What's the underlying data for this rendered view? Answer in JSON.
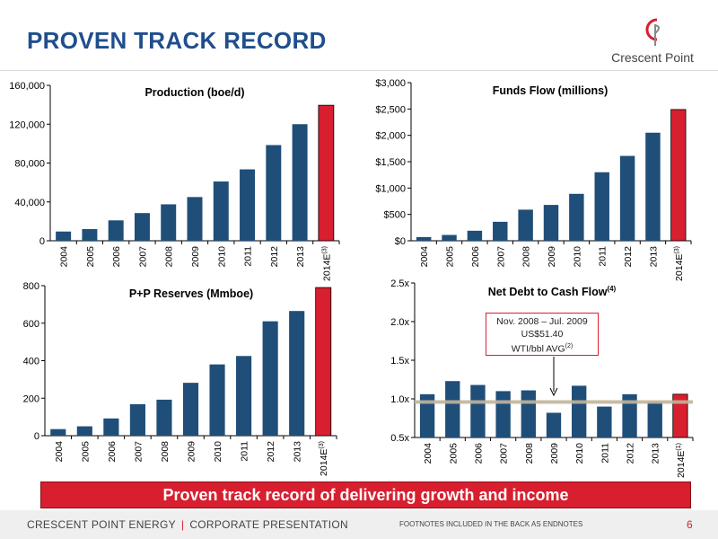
{
  "slide": {
    "title": "PROVEN TRACK RECORD",
    "logo_text": "Crescent Point",
    "banner": "Proven track record of delivering growth and income",
    "footer_left_company": "CRESCENT POINT ENERGY",
    "footer_left_separator": "|",
    "footer_left_doc": "CORPORATE PRESENTATION",
    "footer_note": "FOOTNOTES INCLUDED IN THE BACK AS ENDNOTES",
    "page_number": "6",
    "colors": {
      "navy": "#1f4e79",
      "red": "#d71f2f",
      "title_blue": "#1f4e8c",
      "reference_line": "#c2b59b"
    }
  },
  "annotation": {
    "line1": "Nov. 2008 – Jul. 2009",
    "line2": "US$51.40",
    "line3": "WTI/bbl AVG",
    "footnote": "(2)"
  },
  "chart_data": [
    {
      "type": "bar",
      "title": "Production (boe/d)",
      "categories": [
        "2004",
        "2005",
        "2006",
        "2007",
        "2008",
        "2009",
        "2010",
        "2011",
        "2012",
        "2013",
        "2014E"
      ],
      "category_footnotes": [
        "",
        "",
        "",
        "",
        "",
        "",
        "",
        "",
        "",
        "",
        "(3)"
      ],
      "values": [
        9500,
        12000,
        21000,
        28500,
        37500,
        45000,
        61000,
        73500,
        98500,
        120000,
        139500
      ],
      "ylim": [
        0,
        160000
      ],
      "yticks": [
        0,
        40000,
        80000,
        120000,
        160000
      ],
      "yticklabels": [
        "0",
        "40,000",
        "80,000",
        "120,000",
        "160,000"
      ],
      "highlight": "last",
      "grid": false
    },
    {
      "type": "bar",
      "title": "Funds Flow (millions)",
      "categories": [
        "2004",
        "2005",
        "2006",
        "2007",
        "2008",
        "2009",
        "2010",
        "2011",
        "2012",
        "2013",
        "2014E"
      ],
      "category_footnotes": [
        "",
        "",
        "",
        "",
        "",
        "",
        "",
        "",
        "",
        "",
        "(3)"
      ],
      "values": [
        70,
        110,
        190,
        360,
        590,
        680,
        890,
        1300,
        1610,
        2050,
        2490
      ],
      "ylim": [
        0,
        3000
      ],
      "yticks": [
        0,
        500,
        1000,
        1500,
        2000,
        2500,
        3000
      ],
      "yticklabels": [
        "$0",
        "$500",
        "$1,000",
        "$1,500",
        "$2,000",
        "$2,500",
        "$3,000"
      ],
      "highlight": "last",
      "grid": false
    },
    {
      "type": "bar",
      "title": "P+P Reserves (Mmboe)",
      "categories": [
        "2004",
        "2005",
        "2006",
        "2007",
        "2008",
        "2009",
        "2010",
        "2011",
        "2012",
        "2013",
        "2014E"
      ],
      "category_footnotes": [
        "",
        "",
        "",
        "",
        "",
        "",
        "",
        "",
        "",
        "",
        "(3)"
      ],
      "values": [
        35,
        50,
        92,
        168,
        192,
        282,
        380,
        425,
        610,
        665,
        790
      ],
      "ylim": [
        0,
        800
      ],
      "yticks": [
        0,
        200,
        400,
        600,
        800
      ],
      "yticklabels": [
        "0",
        "200",
        "400",
        "600",
        "800"
      ],
      "highlight": "last",
      "grid": false
    },
    {
      "type": "bar",
      "title": "Net Debt to Cash Flow",
      "title_footnote": "(4)",
      "categories": [
        "2004",
        "2005",
        "2006",
        "2007",
        "2008",
        "2009",
        "2010",
        "2011",
        "2012",
        "2013",
        "2014E"
      ],
      "category_footnotes": [
        "",
        "",
        "",
        "",
        "",
        "",
        "",
        "",
        "",
        "",
        "(1)"
      ],
      "values": [
        1.06,
        1.23,
        1.18,
        1.1,
        1.11,
        0.82,
        1.17,
        0.9,
        1.06,
        0.96,
        1.06
      ],
      "baseline": 0.5,
      "reference_line": 0.96,
      "ylim": [
        0.5,
        2.5
      ],
      "yticks": [
        0.5,
        1.0,
        1.5,
        2.0,
        2.5
      ],
      "yticklabels": [
        "0.5x",
        "1.0x",
        "1.5x",
        "2.0x",
        "2.5x"
      ],
      "highlight": "last",
      "grid": false
    }
  ]
}
